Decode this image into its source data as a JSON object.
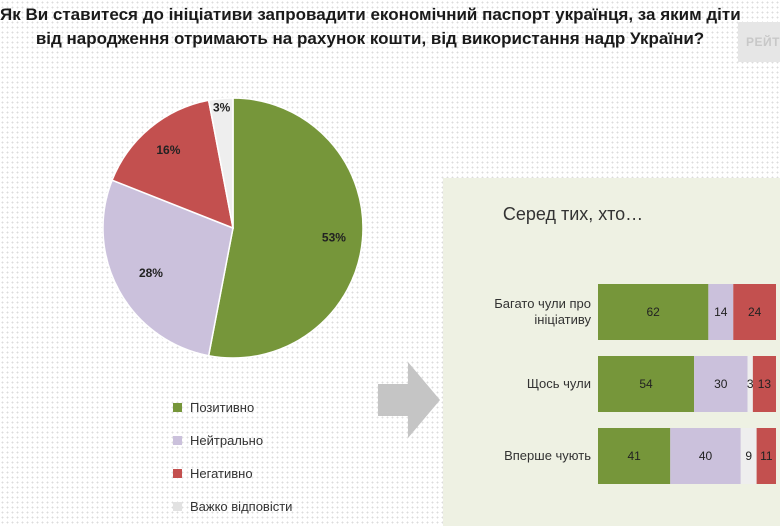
{
  "title": {
    "line1": "Як Ви ставитеся до ініціативи запровадити економічний паспорт українця, за яким діти",
    "line2": "від народження отримають на рахунок кошти, від використання надр України?"
  },
  "logo": {
    "text": "РЕЙТ"
  },
  "colors": {
    "positive": "#76963a",
    "neutral": "#cbc1dc",
    "negative": "#c3504f",
    "hard": "#eeeeee",
    "arrow": "#c5c5c5",
    "panel": "#eef1e3"
  },
  "chart_data": [
    {
      "type": "pie",
      "slices": [
        {
          "label": "Позитивно",
          "value": 53,
          "display": "53%",
          "color_key": "positive"
        },
        {
          "label": "Нейтрально",
          "value": 28,
          "display": "28%",
          "color_key": "neutral"
        },
        {
          "label": "Негативно",
          "value": 16,
          "display": "16%",
          "color_key": "negative"
        },
        {
          "label": "Важко відповісти",
          "value": 3,
          "display": "3%",
          "color_key": "hard"
        }
      ],
      "legend_position": "bottom"
    },
    {
      "type": "bar",
      "orientation": "horizontal",
      "stacked": true,
      "title": "Серед тих, хто…",
      "categories": [
        [
          "Багато чули про",
          "ініціативу"
        ],
        [
          "Щось чули"
        ],
        [
          "Вперше чують"
        ]
      ],
      "series": [
        {
          "color_key": "positive",
          "values": [
            62,
            54,
            41
          ]
        },
        {
          "color_key": "neutral",
          "values": [
            14,
            30,
            40
          ]
        },
        {
          "color_key": "hard",
          "values": [
            0,
            3,
            9
          ]
        },
        {
          "color_key": "negative",
          "values": [
            24,
            13,
            11
          ]
        }
      ],
      "labels": [
        [
          "62",
          "14",
          "",
          "24"
        ],
        [
          "54",
          "30",
          "3",
          "13"
        ],
        [
          "41",
          "40",
          "9",
          "11"
        ]
      ]
    }
  ]
}
